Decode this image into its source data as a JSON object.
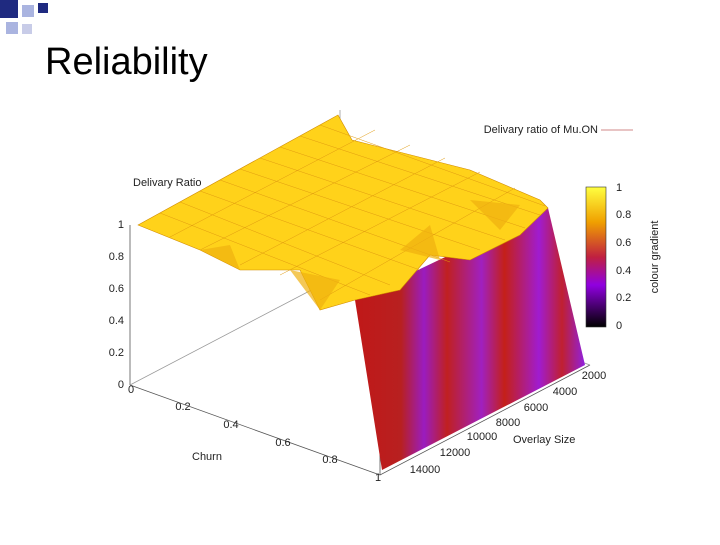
{
  "slide": {
    "title": "Reliability"
  },
  "plot": {
    "legend": "Delivary ratio of Mu.ON",
    "z_label": "Delivary Ratio",
    "x_label": "Churn",
    "y_label": "Overlay Size",
    "colorbar_label": "colour gradient",
    "z_ticks": [
      1,
      0.8,
      0.6,
      0.4,
      0.2,
      0
    ],
    "x_ticks": [
      0,
      0.2,
      0.4,
      0.6,
      0.8,
      1
    ],
    "y_ticks": [
      2000,
      4000,
      6000,
      8000,
      10000,
      12000,
      14000
    ],
    "colorbar_ticks": [
      1,
      0.8,
      0.6,
      0.4,
      0.2,
      0
    ]
  }
}
